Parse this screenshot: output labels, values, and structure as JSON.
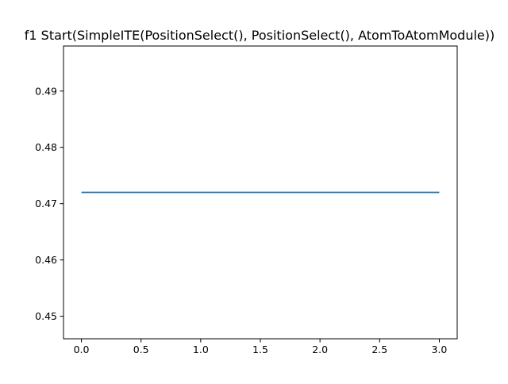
{
  "chart_data": {
    "type": "line",
    "title": "f1 Start(SimpleITE(PositionSelect(), PositionSelect(), AtomToAtomModule))",
    "xlabel": "",
    "ylabel": "",
    "xlim": [
      -0.15,
      3.15
    ],
    "ylim": [
      0.446,
      0.498
    ],
    "xticks": [
      0.0,
      0.5,
      1.0,
      1.5,
      2.0,
      2.5,
      3.0
    ],
    "xtick_labels": [
      "0.0",
      "0.5",
      "1.0",
      "1.5",
      "2.0",
      "2.5",
      "3.0"
    ],
    "yticks": [
      0.45,
      0.46,
      0.47,
      0.48,
      0.49
    ],
    "ytick_labels": [
      "0.45",
      "0.46",
      "0.47",
      "0.48",
      "0.49"
    ],
    "grid": false,
    "series": [
      {
        "x": [
          0,
          1,
          2,
          3
        ],
        "values": [
          0.472,
          0.472,
          0.472,
          0.472
        ],
        "color": "#1f77b4"
      }
    ]
  }
}
